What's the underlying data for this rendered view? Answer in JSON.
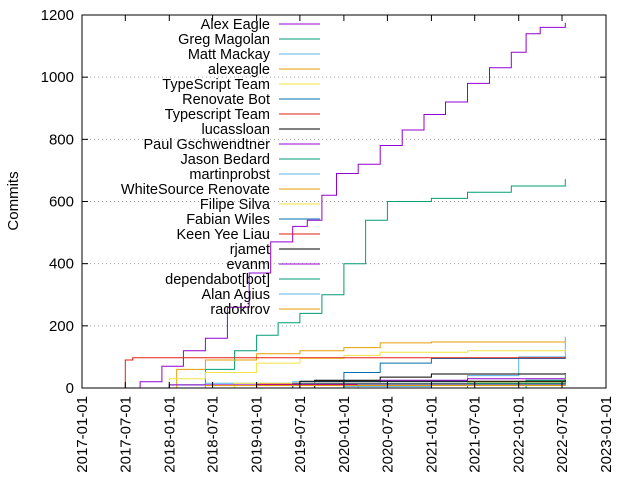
{
  "chart_data": {
    "type": "line",
    "title": "",
    "xlabel": "",
    "ylabel": "Commits",
    "xlim": [
      "2017-01-01",
      "2023-01-01"
    ],
    "ylim": [
      0,
      1200
    ],
    "x_ticks": [
      "2017-01-01",
      "2017-07-01",
      "2018-01-01",
      "2018-07-01",
      "2019-01-01",
      "2019-07-01",
      "2020-01-01",
      "2020-07-01",
      "2021-01-01",
      "2021-07-01",
      "2022-01-01",
      "2022-07-01",
      "2023-01-01"
    ],
    "y_ticks": [
      0,
      200,
      400,
      600,
      800,
      1000,
      1200
    ],
    "grid": "horizontal",
    "legend_position": "top-left",
    "series": [
      {
        "name": "Alex Eagle",
        "color": "#9400d3",
        "points": [
          [
            "2017-06-15",
            0
          ],
          [
            "2017-09-01",
            20
          ],
          [
            "2017-12-01",
            70
          ],
          [
            "2018-03-01",
            120
          ],
          [
            "2018-06-01",
            160
          ],
          [
            "2018-09-01",
            260
          ],
          [
            "2018-12-01",
            370
          ],
          [
            "2019-03-01",
            470
          ],
          [
            "2019-06-01",
            520
          ],
          [
            "2019-08-01",
            540
          ],
          [
            "2019-10-01",
            620
          ],
          [
            "2019-12-01",
            690
          ],
          [
            "2020-03-01",
            720
          ],
          [
            "2020-06-01",
            780
          ],
          [
            "2020-09-01",
            830
          ],
          [
            "2020-12-01",
            880
          ],
          [
            "2021-03-01",
            920
          ],
          [
            "2021-06-01",
            980
          ],
          [
            "2021-09-01",
            1030
          ],
          [
            "2021-12-01",
            1080
          ],
          [
            "2022-02-01",
            1140
          ],
          [
            "2022-04-01",
            1160
          ],
          [
            "2022-07-15",
            1175
          ]
        ]
      },
      {
        "name": "Greg Magolan",
        "color": "#009e73",
        "points": [
          [
            "2017-10-01",
            0
          ],
          [
            "2018-01-01",
            10
          ],
          [
            "2018-06-01",
            60
          ],
          [
            "2018-10-01",
            120
          ],
          [
            "2019-01-01",
            170
          ],
          [
            "2019-04-01",
            210
          ],
          [
            "2019-07-01",
            240
          ],
          [
            "2019-10-01",
            300
          ],
          [
            "2020-01-01",
            400
          ],
          [
            "2020-04-01",
            540
          ],
          [
            "2020-07-01",
            600
          ],
          [
            "2021-01-01",
            610
          ],
          [
            "2021-06-01",
            630
          ],
          [
            "2021-12-01",
            650
          ],
          [
            "2022-07-15",
            672
          ]
        ]
      },
      {
        "name": "Matt Mackay",
        "color": "#56b4e9",
        "points": [
          [
            "2019-02-01",
            0
          ],
          [
            "2020-01-01",
            5
          ],
          [
            "2021-01-01",
            15
          ],
          [
            "2021-06-01",
            40
          ],
          [
            "2022-01-01",
            100
          ],
          [
            "2022-07-15",
            165
          ]
        ]
      },
      {
        "name": "alexeagle",
        "color": "#e69f00",
        "points": [
          [
            "2017-12-01",
            0
          ],
          [
            "2018-02-01",
            60
          ],
          [
            "2018-06-01",
            90
          ],
          [
            "2019-01-01",
            110
          ],
          [
            "2019-07-01",
            120
          ],
          [
            "2020-01-01",
            130
          ],
          [
            "2020-06-01",
            145
          ],
          [
            "2021-01-01",
            148
          ],
          [
            "2022-07-15",
            150
          ]
        ]
      },
      {
        "name": "TypeScript Team",
        "color": "#f0e442",
        "points": [
          [
            "2017-11-01",
            0
          ],
          [
            "2018-01-01",
            30
          ],
          [
            "2018-06-01",
            50
          ],
          [
            "2019-01-01",
            80
          ],
          [
            "2019-07-01",
            95
          ],
          [
            "2020-01-01",
            105
          ],
          [
            "2020-06-01",
            115
          ],
          [
            "2021-06-01",
            120
          ],
          [
            "2022-07-15",
            125
          ]
        ]
      },
      {
        "name": "Renovate Bot",
        "color": "#0072b2",
        "points": [
          [
            "2019-06-01",
            0
          ],
          [
            "2020-01-01",
            50
          ],
          [
            "2020-06-01",
            80
          ],
          [
            "2021-01-01",
            95
          ],
          [
            "2022-07-15",
            100
          ]
        ]
      },
      {
        "name": "Typescript Team",
        "color": "#e51e10",
        "points": [
          [
            "2017-06-01",
            0
          ],
          [
            "2017-07-01",
            90
          ],
          [
            "2017-08-01",
            97
          ],
          [
            "2022-07-15",
            97
          ]
        ]
      },
      {
        "name": "lucassloan",
        "color": "#000000",
        "points": [
          [
            "2019-06-01",
            0
          ],
          [
            "2019-09-01",
            25
          ],
          [
            "2020-06-01",
            35
          ],
          [
            "2021-01-01",
            45
          ],
          [
            "2022-07-15",
            48
          ]
        ]
      },
      {
        "name": "Paul Gschwendtner",
        "color": "#9400d3",
        "points": [
          [
            "2018-09-01",
            0
          ],
          [
            "2019-06-01",
            15
          ],
          [
            "2020-06-01",
            25
          ],
          [
            "2021-06-01",
            30
          ],
          [
            "2022-07-15",
            32
          ]
        ]
      },
      {
        "name": "Jason Bedard",
        "color": "#009e73",
        "points": [
          [
            "2021-10-01",
            0
          ],
          [
            "2022-02-01",
            25
          ],
          [
            "2022-07-15",
            42
          ]
        ]
      },
      {
        "name": "martinprobst",
        "color": "#56b4e9",
        "points": [
          [
            "2017-09-01",
            0
          ],
          [
            "2018-06-01",
            15
          ],
          [
            "2019-06-01",
            20
          ],
          [
            "2022-07-15",
            22
          ]
        ]
      },
      {
        "name": "WhiteSource Renovate",
        "color": "#e69f00",
        "points": [
          [
            "2020-10-01",
            0
          ],
          [
            "2021-06-01",
            20
          ],
          [
            "2022-07-15",
            30
          ]
        ]
      },
      {
        "name": "Filipe Silva",
        "color": "#f0e442",
        "points": [
          [
            "2018-01-01",
            0
          ],
          [
            "2018-10-01",
            15
          ],
          [
            "2022-07-15",
            18
          ]
        ]
      },
      {
        "name": "Fabian Wiles",
        "color": "#0072b2",
        "points": [
          [
            "2018-03-01",
            0
          ],
          [
            "2019-06-01",
            14
          ],
          [
            "2022-07-15",
            16
          ]
        ]
      },
      {
        "name": "Keen Yee Liau",
        "color": "#e51e10",
        "points": [
          [
            "2018-05-01",
            0
          ],
          [
            "2019-01-01",
            12
          ],
          [
            "2022-07-15",
            14
          ]
        ]
      },
      {
        "name": "rjamet",
        "color": "#000000",
        "points": [
          [
            "2019-01-01",
            0
          ],
          [
            "2019-07-01",
            22
          ],
          [
            "2022-07-15",
            26
          ]
        ]
      },
      {
        "name": "evanm",
        "color": "#9400d3",
        "points": [
          [
            "2017-08-01",
            0
          ],
          [
            "2018-01-01",
            10
          ],
          [
            "2022-07-15",
            11
          ]
        ]
      },
      {
        "name": "dependabot[bot]",
        "color": "#009e73",
        "points": [
          [
            "2020-06-01",
            0
          ],
          [
            "2021-06-01",
            15
          ],
          [
            "2022-07-15",
            20
          ]
        ]
      },
      {
        "name": "Alan Agius",
        "color": "#56b4e9",
        "points": [
          [
            "2019-03-01",
            0
          ],
          [
            "2020-03-01",
            10
          ],
          [
            "2022-07-15",
            12
          ]
        ]
      },
      {
        "name": "radokirov",
        "color": "#e69f00",
        "points": [
          [
            "2017-09-01",
            0
          ],
          [
            "2018-06-01",
            8
          ],
          [
            "2022-07-15",
            9
          ]
        ]
      }
    ]
  }
}
